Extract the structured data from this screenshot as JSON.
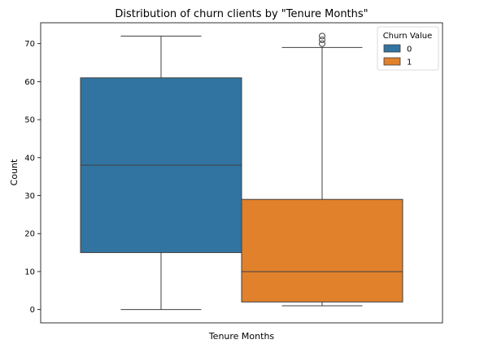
{
  "chart_data": {
    "type": "boxplot",
    "title": "Distribution of churn clients by \"Tenure Months\"",
    "xlabel": "Tenure Months",
    "ylabel": "Count",
    "ylim": [
      -3.5,
      75.5
    ],
    "yticks": [
      0,
      10,
      20,
      30,
      40,
      50,
      60,
      70
    ],
    "grid": false,
    "legend": {
      "title": "Churn Value",
      "placement": "top-right"
    },
    "series": [
      {
        "name": "0",
        "color": "#3274a1",
        "min": 0,
        "q1": 15,
        "median": 38,
        "q3": 61,
        "max": 72,
        "outliers": []
      },
      {
        "name": "1",
        "color": "#e1812c",
        "min": 1,
        "q1": 2,
        "median": 10,
        "q3": 29,
        "max": 69,
        "outliers": [
          70,
          71,
          72
        ]
      }
    ]
  }
}
